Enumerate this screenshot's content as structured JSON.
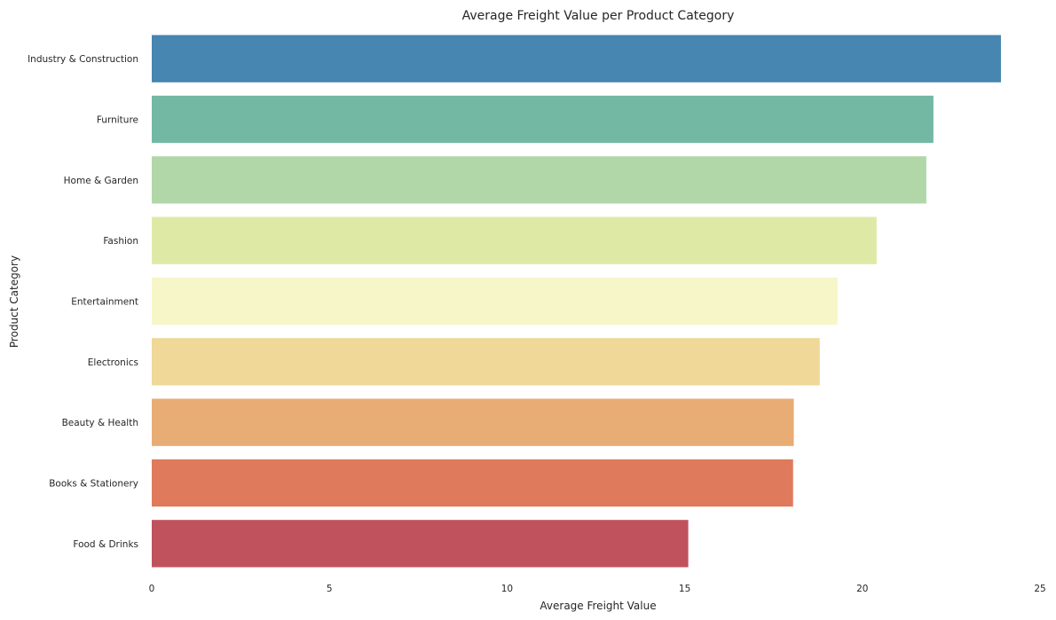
{
  "chart_data": {
    "type": "bar",
    "orientation": "horizontal",
    "title": "Average Freight Value per Product Category",
    "xlabel": "Average Freight Value",
    "ylabel": "Product Category",
    "xlim": [
      0,
      25
    ],
    "xticks": [
      "0",
      "5",
      "10",
      "15",
      "20",
      "25"
    ],
    "grid": false,
    "categories": [
      "Industry & Construction",
      "Furniture",
      "Home & Garden",
      "Fashion",
      "Entertainment",
      "Electronics",
      "Beauty & Health",
      "Books & Stationery",
      "Food & Drinks"
    ],
    "values": [
      23.9,
      22.0,
      21.8,
      20.4,
      19.3,
      18.8,
      18.07,
      18.05,
      15.1
    ],
    "colors": [
      "#4686b0",
      "#73b8a2",
      "#b1d7a9",
      "#dfe9a6",
      "#f6f6c9",
      "#efd898",
      "#e8ac75",
      "#df7a5c",
      "#c0525e"
    ]
  }
}
